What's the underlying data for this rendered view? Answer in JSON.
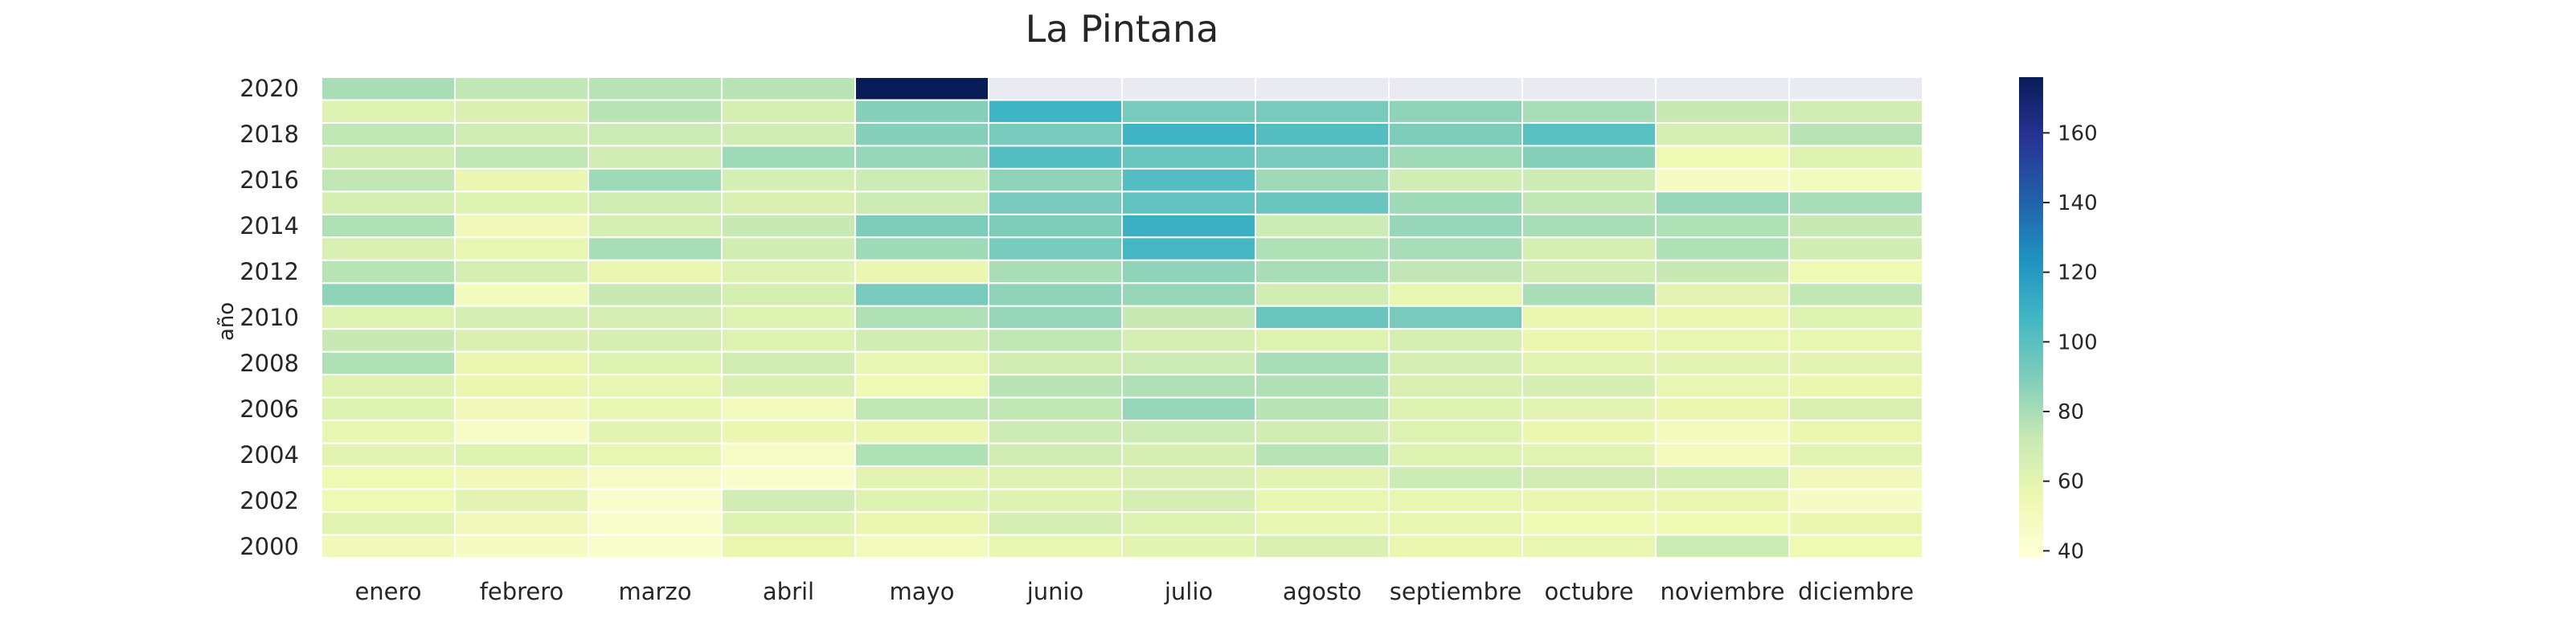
{
  "chart_data": {
    "type": "heatmap",
    "title": "La Pintana",
    "xlabel": "",
    "ylabel": "año",
    "x_categories": [
      "enero",
      "febrero",
      "marzo",
      "abril",
      "mayo",
      "junio",
      "julio",
      "agosto",
      "septiembre",
      "octubre",
      "noviembre",
      "diciembre"
    ],
    "y_categories": [
      2020,
      2019,
      2018,
      2017,
      2016,
      2015,
      2014,
      2013,
      2012,
      2011,
      2010,
      2009,
      2008,
      2007,
      2006,
      2005,
      2004,
      2003,
      2002,
      2001,
      2000
    ],
    "y_tick_labels": [
      "2020",
      "2018",
      "2016",
      "2014",
      "2012",
      "2010",
      "2008",
      "2006",
      "2004",
      "2002",
      "2000"
    ],
    "values": [
      [
        80,
        74,
        76,
        76,
        176,
        null,
        null,
        null,
        null,
        null,
        null,
        null
      ],
      [
        62,
        64,
        76,
        66,
        88,
        108,
        92,
        92,
        86,
        80,
        72,
        68
      ],
      [
        74,
        68,
        70,
        68,
        88,
        92,
        108,
        102,
        90,
        100,
        66,
        76
      ],
      [
        68,
        74,
        68,
        82,
        84,
        102,
        96,
        92,
        82,
        88,
        54,
        62
      ],
      [
        74,
        56,
        82,
        66,
        70,
        86,
        102,
        82,
        68,
        70,
        48,
        50
      ],
      [
        66,
        62,
        68,
        64,
        70,
        92,
        98,
        96,
        82,
        74,
        84,
        80
      ],
      [
        78,
        52,
        66,
        72,
        90,
        90,
        110,
        70,
        84,
        80,
        78,
        72
      ],
      [
        64,
        58,
        80,
        68,
        82,
        92,
        106,
        78,
        80,
        66,
        78,
        68
      ],
      [
        76,
        66,
        56,
        62,
        56,
        80,
        86,
        80,
        74,
        68,
        72,
        54
      ],
      [
        86,
        50,
        72,
        66,
        92,
        86,
        84,
        68,
        58,
        80,
        60,
        74
      ],
      [
        62,
        66,
        66,
        62,
        78,
        84,
        72,
        96,
        92,
        56,
        56,
        62
      ],
      [
        72,
        64,
        66,
        62,
        68,
        74,
        66,
        62,
        66,
        56,
        58,
        58
      ],
      [
        78,
        56,
        62,
        68,
        58,
        68,
        70,
        80,
        66,
        60,
        60,
        60
      ],
      [
        62,
        56,
        58,
        64,
        54,
        76,
        78,
        78,
        64,
        66,
        58,
        56
      ],
      [
        62,
        52,
        58,
        50,
        74,
        74,
        84,
        76,
        62,
        60,
        56,
        64
      ],
      [
        58,
        46,
        60,
        56,
        56,
        70,
        70,
        68,
        62,
        56,
        50,
        56
      ],
      [
        60,
        62,
        58,
        46,
        78,
        68,
        66,
        76,
        62,
        60,
        50,
        60
      ],
      [
        54,
        52,
        46,
        44,
        60,
        62,
        64,
        60,
        70,
        68,
        66,
        52
      ],
      [
        54,
        60,
        44,
        68,
        62,
        62,
        66,
        58,
        58,
        56,
        56,
        48
      ],
      [
        60,
        52,
        44,
        62,
        56,
        66,
        62,
        58,
        58,
        54,
        54,
        56
      ],
      [
        52,
        48,
        44,
        56,
        50,
        58,
        60,
        64,
        56,
        58,
        70,
        54
      ]
    ],
    "missing_color": "#EAEAF2",
    "colormap": "YlGnBu",
    "colorbar": {
      "min": 38,
      "max": 176,
      "ticks": [
        40,
        60,
        80,
        100,
        120,
        140,
        160
      ]
    },
    "colorbar_stops": [
      "#ffffd9",
      "#edf8b1",
      "#c7e9b4",
      "#7fcdbb",
      "#41b6c4",
      "#1d91c0",
      "#225ea8",
      "#253494",
      "#081d58"
    ],
    "grid": false,
    "legend": "right"
  }
}
